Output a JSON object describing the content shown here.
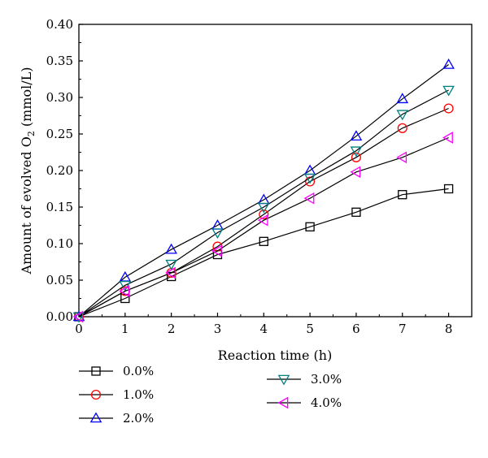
{
  "chart_data": {
    "type": "line",
    "xlabel": "Reaction time (h)",
    "ylabel_main": "Amount of evolved O",
    "ylabel_sub": "2",
    "ylabel_unit": " (mmol/L)",
    "xlim": [
      0,
      8.5
    ],
    "ylim": [
      0,
      0.4
    ],
    "x_ticks": [
      "0",
      "1",
      "2",
      "3",
      "4",
      "5",
      "6",
      "7",
      "8"
    ],
    "y_ticks": [
      "0.00",
      "0.05",
      "0.10",
      "0.15",
      "0.20",
      "0.25",
      "0.30",
      "0.35",
      "0.40"
    ],
    "x": [
      0,
      1,
      2,
      3,
      4,
      5,
      6,
      7,
      8
    ],
    "series": [
      {
        "name": "0.0%",
        "marker": "square",
        "color": "#000000",
        "values": [
          0.0,
          0.025,
          0.055,
          0.085,
          0.103,
          0.123,
          0.143,
          0.167,
          0.175
        ]
      },
      {
        "name": "1.0%",
        "marker": "circle",
        "color": "#ff0000",
        "values": [
          0.0,
          0.035,
          0.06,
          0.096,
          0.14,
          0.185,
          0.218,
          0.258,
          0.285
        ]
      },
      {
        "name": "2.0%",
        "marker": "triangle-up",
        "color": "#0000ff",
        "values": [
          0.0,
          0.054,
          0.092,
          0.125,
          0.16,
          0.2,
          0.247,
          0.298,
          0.345
        ]
      },
      {
        "name": "3.0%",
        "marker": "triangle-down",
        "color": "#008080",
        "values": [
          0.0,
          0.043,
          0.072,
          0.115,
          0.15,
          0.19,
          0.227,
          0.277,
          0.31
        ]
      },
      {
        "name": "4.0%",
        "marker": "triangle-left",
        "color": "#ff00ff",
        "values": [
          0.0,
          0.035,
          0.06,
          0.09,
          0.132,
          0.162,
          0.198,
          0.218,
          0.245
        ]
      }
    ],
    "legend_position": "bottom",
    "grid": false
  }
}
